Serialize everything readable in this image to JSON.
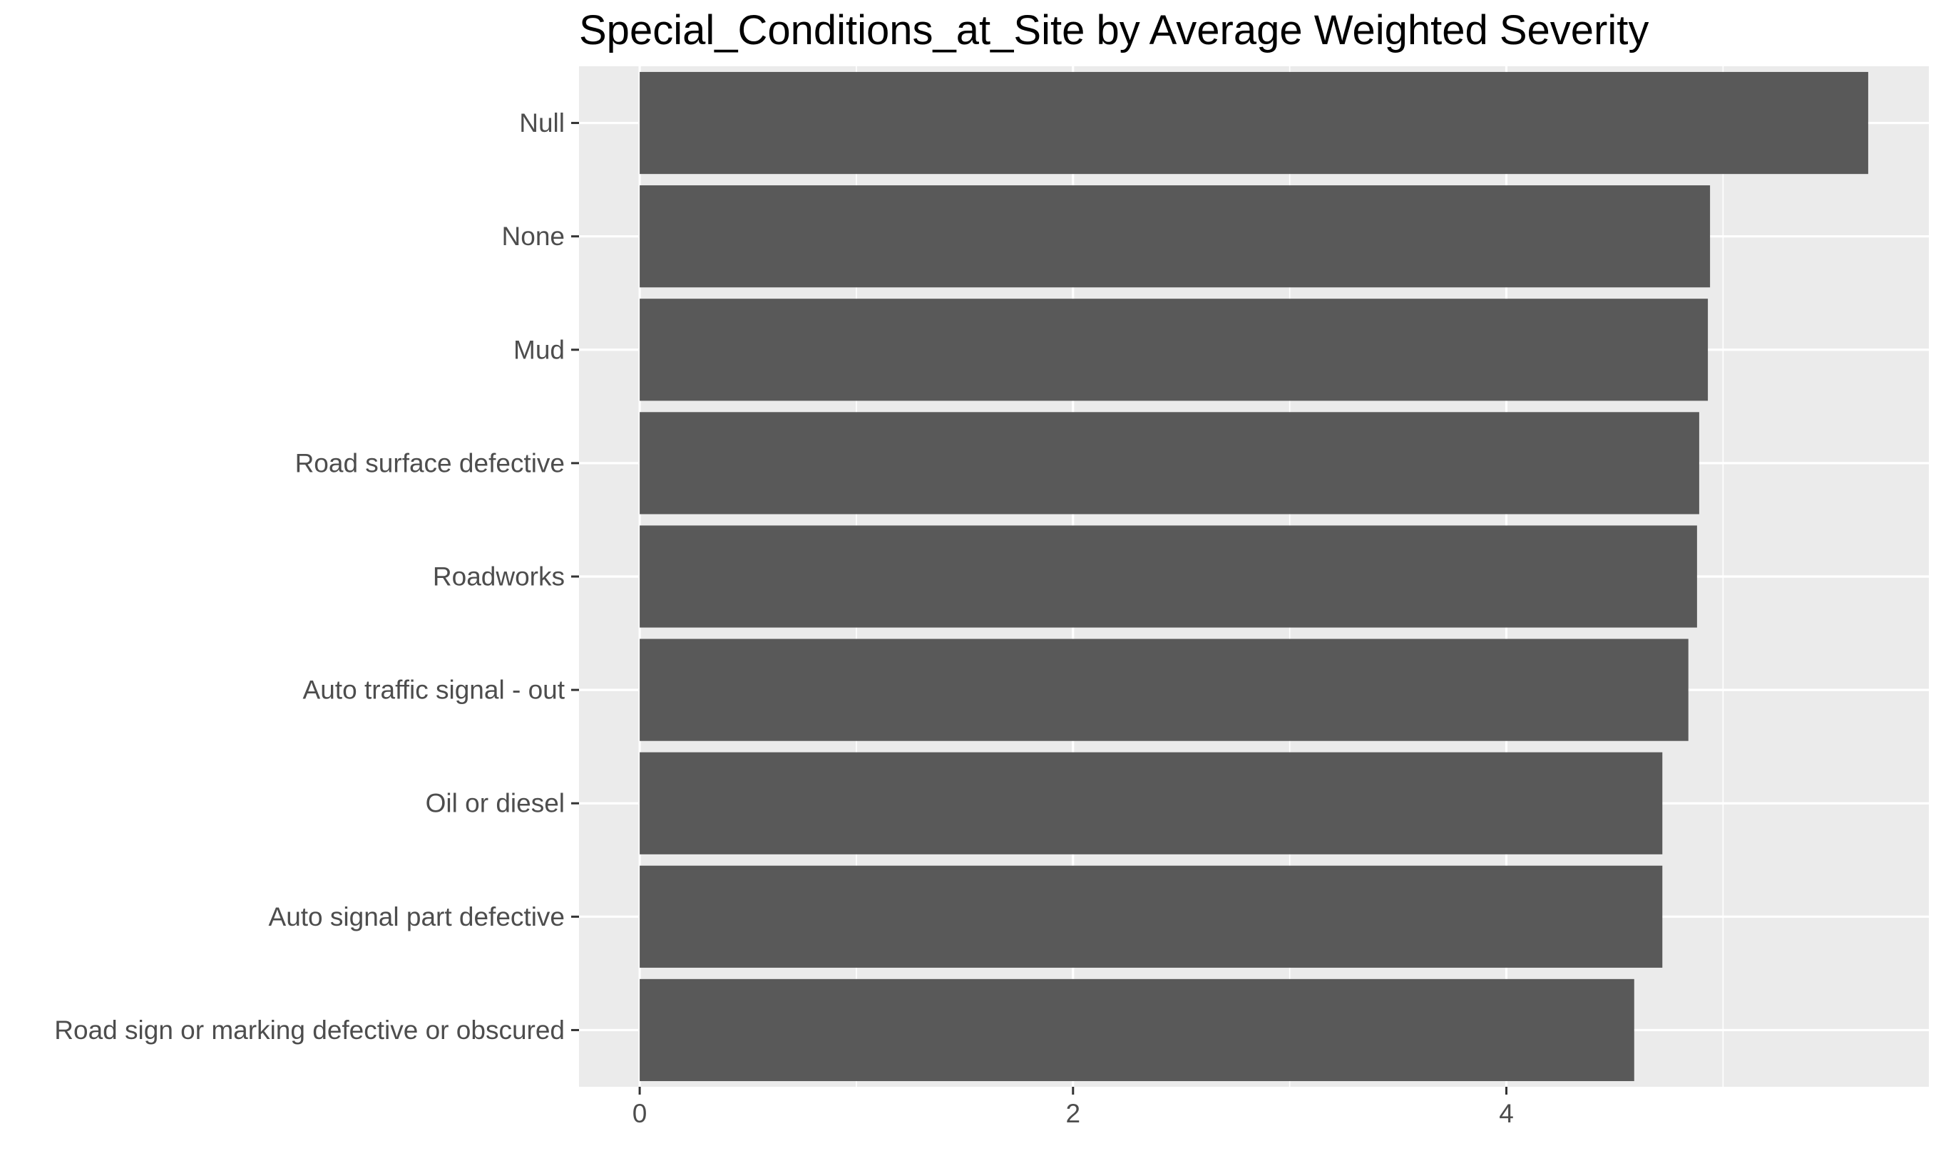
{
  "chart_data": {
    "type": "bar",
    "orientation": "horizontal",
    "title": "Special_Conditions_at_Site by Average Weighted Severity",
    "xlabel": "",
    "ylabel": "",
    "categories": [
      "Null",
      "None",
      "Mud",
      "Road surface defective",
      "Roadworks",
      "Auto traffic signal - out",
      "Oil or diesel",
      "Auto signal part defective",
      "Road sign or marking defective or obscured"
    ],
    "values": [
      5.67,
      4.94,
      4.93,
      4.89,
      4.88,
      4.84,
      4.72,
      4.72,
      4.59
    ],
    "xlim": [
      -0.28,
      5.95
    ],
    "x_ticks": [
      0,
      2,
      4
    ],
    "x_tick_labels": [
      "0",
      "2",
      "4"
    ],
    "grid": true,
    "legend": "none",
    "colors": {
      "bar": "#595959",
      "panel_background": "#ebebeb",
      "grid": "#ffffff",
      "tick_text": "#4d4d4d",
      "axis_ticks": "#333333",
      "title": "#000000"
    }
  }
}
